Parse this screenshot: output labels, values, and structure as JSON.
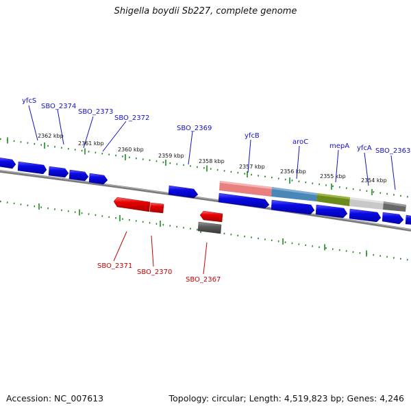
{
  "title": "Shigella boydii Sb227, complete genome",
  "footer": {
    "accession": "Accession: NC_007613",
    "summary": "Topology: circular; Length: 4,519,823 bp; Genes: 4,246"
  },
  "colors": {
    "forward_gene": "#0a0ae6",
    "reverse_gene": "#e00000",
    "pseudo_gene": "#5a5a5a",
    "backbone": "#7a7a7a",
    "ticks": "#1c8a1c",
    "forward_label": "#1010c8",
    "reverse_label": "#c80000"
  },
  "scale_labels": [
    "2362 kbp",
    "2361 kbp",
    "2360 kbp",
    "2359 kbp",
    "2358 kbp",
    "2357 kbp",
    "2356 kbp",
    "2355 kbp",
    "2354 kbp"
  ],
  "forward_labels": [
    "yfcS",
    "SBO_2374",
    "SBO_2373",
    "SBO_2372",
    "SBO_2369",
    "yfcB",
    "aroC",
    "mepA",
    "yfcA",
    "SBO_2363"
  ],
  "reverse_labels": [
    "SBO_2371",
    "SBO_2370",
    "SBO_2367"
  ],
  "feature_colors": [
    "#e88080",
    "#4a86b8",
    "#6a8a1e",
    "#c8c8c8",
    "#686868"
  ]
}
